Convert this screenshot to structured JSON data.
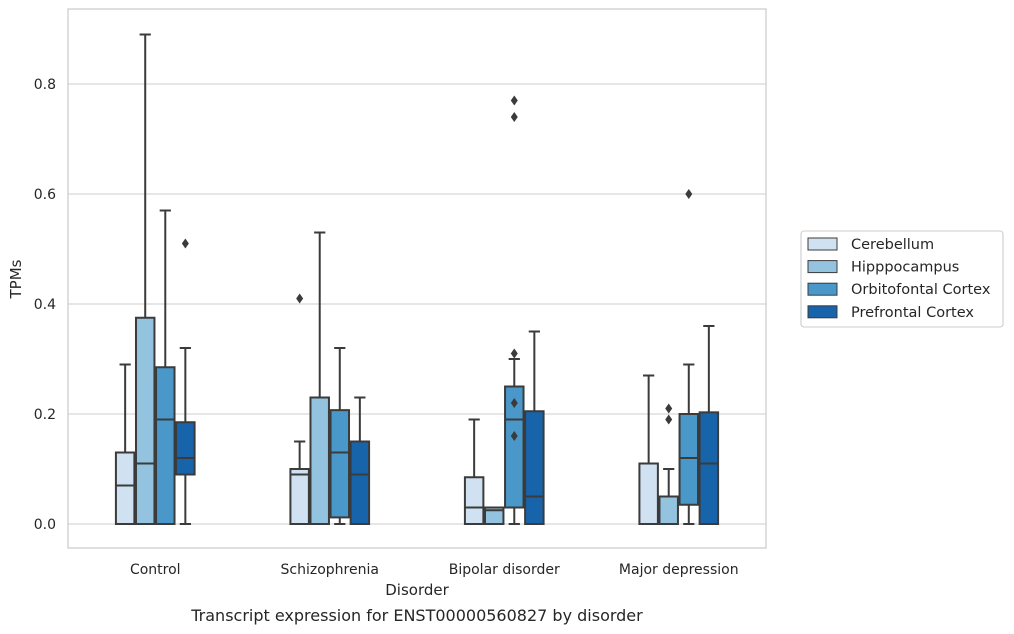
{
  "caption": "Transcript expression for ENST00000560827 by disorder",
  "chart_data": {
    "type": "box",
    "title": "",
    "xlabel": "Disorder",
    "ylabel": "TPMs",
    "categories": [
      "Control",
      "Schizophrenia",
      "Bipolar disorder",
      "Major depression"
    ],
    "ylim": [
      -0.04,
      0.94
    ],
    "yticks": [
      0.0,
      0.2,
      0.4,
      0.6,
      0.8
    ],
    "ytick_labels": [
      "0.0",
      "0.2",
      "0.4",
      "0.6",
      "0.8"
    ],
    "grid": "horizontal",
    "legend_position": "right",
    "series": [
      {
        "name": "Cerebellum",
        "color": "#d0e1f1",
        "boxes": [
          {
            "whislo": 0.0,
            "q1": 0.0,
            "med": 0.07,
            "q3": 0.13,
            "whishi": 0.29,
            "fliers": []
          },
          {
            "whislo": 0.0,
            "q1": 0.0,
            "med": 0.09,
            "q3": 0.1,
            "whishi": 0.15,
            "fliers": [
              0.41
            ]
          },
          {
            "whislo": 0.0,
            "q1": 0.0,
            "med": 0.03,
            "q3": 0.085,
            "whishi": 0.19,
            "fliers": []
          },
          {
            "whislo": 0.0,
            "q1": 0.0,
            "med": 0.0,
            "q3": 0.11,
            "whishi": 0.27,
            "fliers": []
          }
        ]
      },
      {
        "name": "Hipppocampus",
        "color": "#94c3df",
        "boxes": [
          {
            "whislo": 0.0,
            "q1": 0.0,
            "med": 0.11,
            "q3": 0.375,
            "whishi": 0.89,
            "fliers": []
          },
          {
            "whislo": 0.0,
            "q1": 0.0,
            "med": 0.0,
            "q3": 0.23,
            "whishi": 0.53,
            "fliers": []
          },
          {
            "whislo": 0.0,
            "q1": 0.0,
            "med": 0.025,
            "q3": 0.03,
            "whishi": 0.03,
            "fliers": []
          },
          {
            "whislo": 0.0,
            "q1": 0.0,
            "med": 0.0,
            "q3": 0.05,
            "whishi": 0.1,
            "fliers": [
              0.19,
              0.21
            ]
          }
        ]
      },
      {
        "name": "Orbitofontal Cortex",
        "color": "#4a98c9",
        "boxes": [
          {
            "whislo": 0.0,
            "q1": 0.0,
            "med": 0.19,
            "q3": 0.285,
            "whishi": 0.57,
            "fliers": []
          },
          {
            "whislo": 0.0,
            "q1": 0.012,
            "med": 0.13,
            "q3": 0.207,
            "whishi": 0.32,
            "fliers": []
          },
          {
            "whislo": 0.0,
            "q1": 0.03,
            "med": 0.19,
            "q3": 0.25,
            "whishi": 0.3,
            "fliers": [
              0.16,
              0.22,
              0.31,
              0.74,
              0.77
            ]
          },
          {
            "whislo": 0.0,
            "q1": 0.035,
            "med": 0.12,
            "q3": 0.2,
            "whishi": 0.29,
            "fliers": [
              0.6
            ]
          }
        ]
      },
      {
        "name": "Prefrontal Cortex",
        "color": "#1764ab",
        "boxes": [
          {
            "whislo": 0.0,
            "q1": 0.09,
            "med": 0.12,
            "q3": 0.185,
            "whishi": 0.32,
            "fliers": [
              0.51
            ]
          },
          {
            "whislo": 0.0,
            "q1": 0.0,
            "med": 0.09,
            "q3": 0.15,
            "whishi": 0.23,
            "fliers": []
          },
          {
            "whislo": 0.0,
            "q1": 0.0,
            "med": 0.05,
            "q3": 0.205,
            "whishi": 0.35,
            "fliers": []
          },
          {
            "whislo": 0.0,
            "q1": 0.0,
            "med": 0.11,
            "q3": 0.203,
            "whishi": 0.36,
            "fliers": []
          }
        ]
      }
    ]
  }
}
